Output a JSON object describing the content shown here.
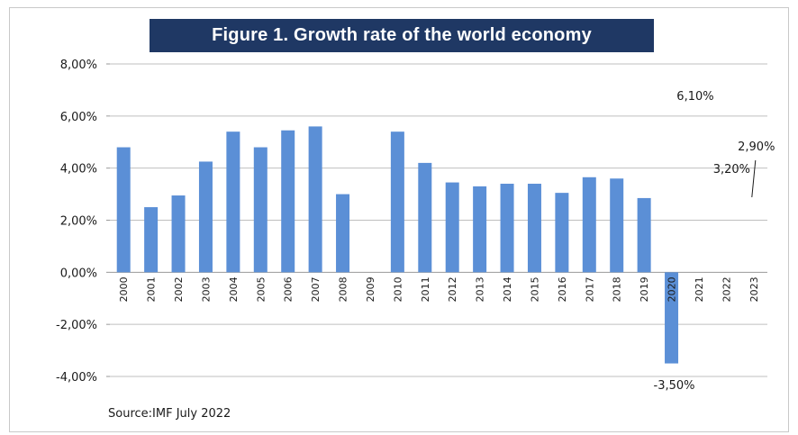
{
  "title": "Figure 1.  Growth rate of the world economy",
  "source": "Source:IMF July 2022",
  "colors": {
    "bar": "#5b8fd6",
    "banner": "#1f3864",
    "grid": "#bfbfbf"
  },
  "chart_data": {
    "type": "bar",
    "title": "Figure 1.  Growth rate of the world economy",
    "xlabel": "",
    "ylabel": "",
    "ylim": [
      -4,
      8
    ],
    "y_tick_labels": [
      "8,00%",
      "6,00%",
      "4,00%",
      "2,00%",
      "0,00%",
      "-2,00%",
      "-4,00%"
    ],
    "y_ticks": [
      8,
      6,
      4,
      2,
      0,
      -2,
      -4
    ],
    "grid": true,
    "categories": [
      "2000",
      "2001",
      "2002",
      "2003",
      "2004",
      "2005",
      "2006",
      "2007",
      "2008",
      "2009",
      "2010",
      "2011",
      "2012",
      "2013",
      "2014",
      "2015",
      "2016",
      "2017",
      "2018",
      "2019",
      "2020",
      "2021",
      "2022",
      "2023"
    ],
    "values": [
      4.8,
      2.5,
      2.95,
      4.25,
      5.4,
      4.8,
      5.45,
      5.6,
      3.0,
      null,
      5.4,
      4.2,
      3.45,
      3.3,
      3.4,
      3.4,
      3.05,
      3.65,
      3.6,
      2.85,
      -3.5,
      null,
      null,
      null
    ],
    "annotations": [
      {
        "text": "6,10%",
        "category": "2021"
      },
      {
        "text": "3,20%",
        "category": "2022"
      },
      {
        "text": "2,90%",
        "category": "2023"
      },
      {
        "text": "-3,50%",
        "category": "2020"
      }
    ]
  }
}
